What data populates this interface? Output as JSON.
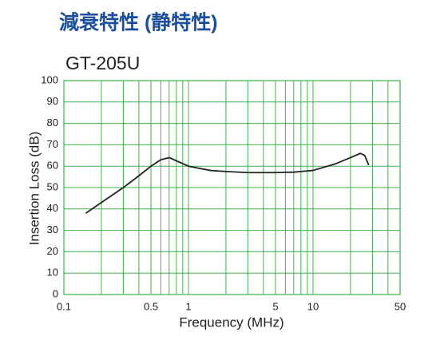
{
  "chart_data": {
    "type": "line",
    "title": "減衰特性 (静特性)",
    "subtitle": "GT-205U",
    "x_label": "Frequency (MHz)",
    "y_label": "Insertion Loss (dB)",
    "log_x": true,
    "grid": true,
    "grid_color": "#3cb54a",
    "x": [
      0.15,
      0.2,
      0.3,
      0.4,
      0.5,
      0.6,
      0.7,
      0.8,
      1,
      1.5,
      2,
      3,
      5,
      7,
      8,
      10,
      15,
      20,
      24,
      26,
      28
    ],
    "series": [
      {
        "name": "GT-205U",
        "color": "#222222",
        "values": [
          38,
          43,
          50,
          55.5,
          60,
          63,
          64,
          62.5,
          60,
          58,
          57.5,
          57,
          57,
          57.2,
          57.5,
          58,
          61,
          64,
          66,
          65,
          60.5
        ]
      }
    ],
    "xlim": [
      0.1,
      50
    ],
    "xticks": [
      0.1,
      0.5,
      1,
      5,
      10,
      50
    ],
    "xminor": [
      0.2,
      0.3,
      0.4,
      0.6,
      0.7,
      0.8,
      0.9,
      2,
      3,
      4,
      6,
      7,
      8,
      9,
      20,
      30,
      40
    ],
    "ylim": [
      0,
      100
    ],
    "yticks": [
      0,
      10,
      20,
      30,
      40,
      50,
      60,
      70,
      80,
      90,
      100
    ]
  }
}
